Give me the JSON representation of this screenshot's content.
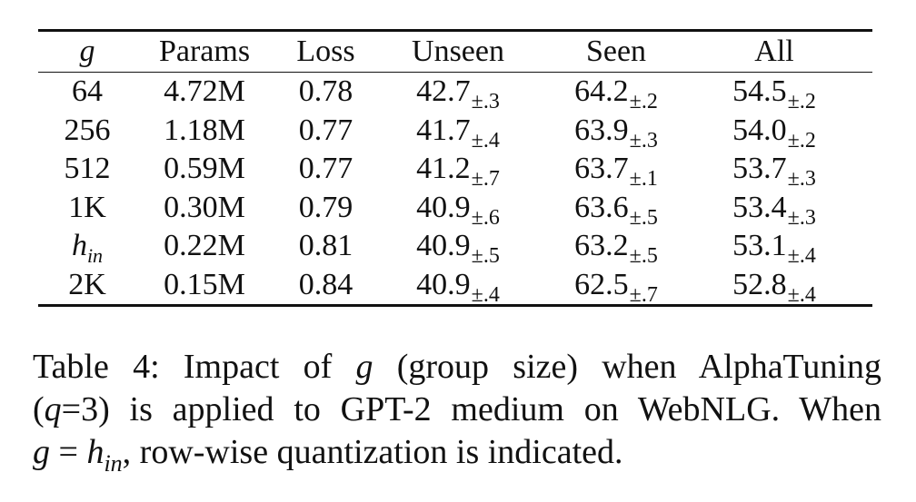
{
  "table": {
    "headers": {
      "g": "g",
      "params": "Params",
      "loss": "Loss",
      "unseen": "Unseen",
      "seen": "Seen",
      "all": "All"
    },
    "rows": [
      {
        "g_main": "64",
        "g_sub": "",
        "params": "4.72M",
        "loss": "0.78",
        "unseen": "42.7",
        "unseen_pm": "±.3",
        "seen": "64.2",
        "seen_pm": "±.2",
        "all": "54.5",
        "all_pm": "±.2"
      },
      {
        "g_main": "256",
        "g_sub": "",
        "params": "1.18M",
        "loss": "0.77",
        "unseen": "41.7",
        "unseen_pm": "±.4",
        "seen": "63.9",
        "seen_pm": "±.3",
        "all": "54.0",
        "all_pm": "±.2"
      },
      {
        "g_main": "512",
        "g_sub": "",
        "params": "0.59M",
        "loss": "0.77",
        "unseen": "41.2",
        "unseen_pm": "±.7",
        "seen": "63.7",
        "seen_pm": "±.1",
        "all": "53.7",
        "all_pm": "±.3"
      },
      {
        "g_main": "1K",
        "g_sub": "",
        "params": "0.30M",
        "loss": "0.79",
        "unseen": "40.9",
        "unseen_pm": "±.6",
        "seen": "63.6",
        "seen_pm": "±.5",
        "all": "53.4",
        "all_pm": "±.3"
      },
      {
        "g_main": "h",
        "g_sub": "in",
        "params": "0.22M",
        "loss": "0.81",
        "unseen": "40.9",
        "unseen_pm": "±.5",
        "seen": "63.2",
        "seen_pm": "±.5",
        "all": "53.1",
        "all_pm": "±.4"
      },
      {
        "g_main": "2K",
        "g_sub": "",
        "params": "0.15M",
        "loss": "0.84",
        "unseen": "40.9",
        "unseen_pm": "±.4",
        "seen": "62.5",
        "seen_pm": "±.7",
        "all": "52.8",
        "all_pm": "±.4"
      }
    ]
  },
  "caption": {
    "line1_a": "Table 4: Impact of ",
    "line1_g": "g",
    "line1_b": " (group size) when AlphaTuning",
    "line2_a": "(",
    "line2_q": "q",
    "line2_b": "=3) is applied to GPT-2 medium on WebNLG. When",
    "line3_g": "g",
    "line3_eq": " = ",
    "line3_h": "h",
    "line3_sub": "in",
    "line3_b": ", row-wise quantization is indicated."
  }
}
